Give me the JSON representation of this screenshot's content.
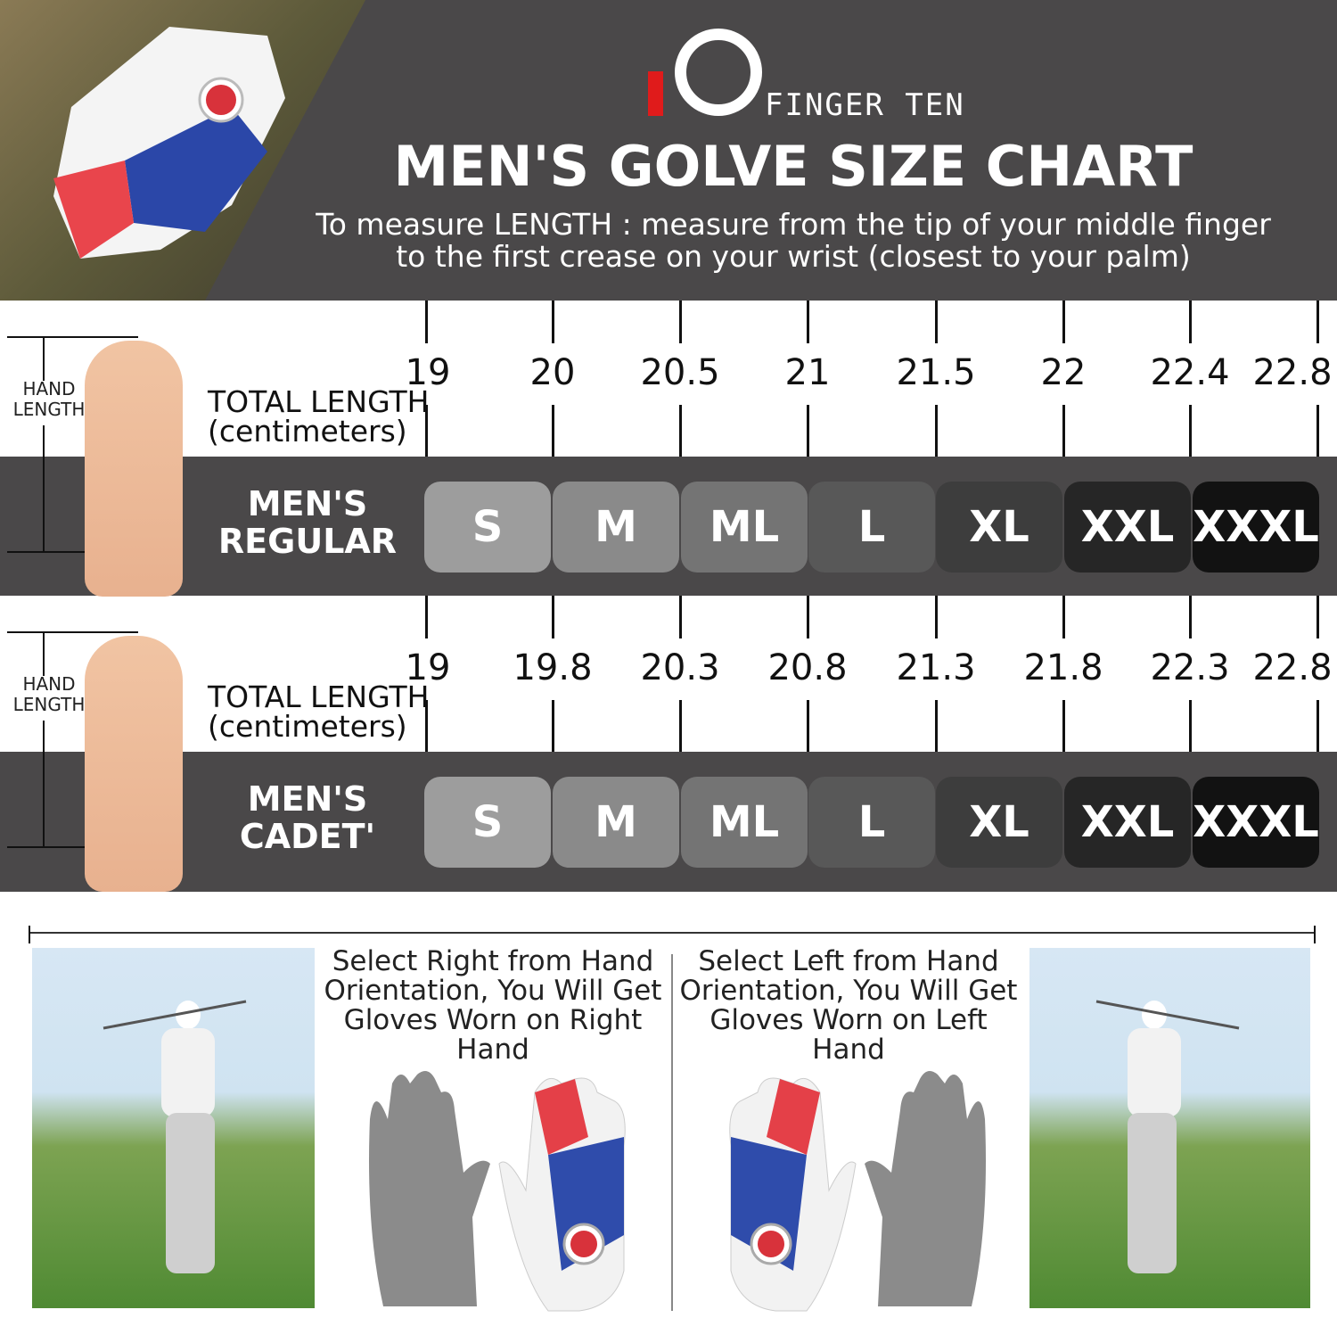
{
  "brand": {
    "name": "FINGER TEN",
    "accent": "#e01b1b"
  },
  "header": {
    "title": "MEN'S GOLVE SIZE CHART",
    "line1": "To measure LENGTH : measure from the tip of your middle finger",
    "line2": "to the first crease on your wrist (closest to your palm)"
  },
  "charts": [
    {
      "hand_label": "HAND LENGTH",
      "axis_label_1": "TOTAL LENGTH",
      "axis_label_2": "(centimeters)",
      "category": "MEN'S REGULAR",
      "lengths": [
        "19",
        "20",
        "20.5",
        "21",
        "21.5",
        "22",
        "22.4",
        "22.8"
      ],
      "sizes": [
        "S",
        "M",
        "ML",
        "L",
        "XL",
        "XXL",
        "XXXL"
      ]
    },
    {
      "hand_label": "HAND LENGTH",
      "axis_label_1": "TOTAL LENGTH",
      "axis_label_2": "(centimeters)",
      "category": "MEN'S CADET'",
      "lengths": [
        "19",
        "19.8",
        "20.3",
        "20.8",
        "21.3",
        "21.8",
        "22.3",
        "22.8"
      ],
      "sizes": [
        "S",
        "M",
        "ML",
        "L",
        "XL",
        "XXL",
        "XXXL"
      ]
    }
  ],
  "chip_colors": [
    "#9d9d9d",
    "#8a8a8a",
    "#747474",
    "#585858",
    "#3d3d3d",
    "#262626",
    "#121212"
  ],
  "orientation": {
    "right": "Select Right from Hand Orientation, You Will Get Gloves Worn on Right Hand",
    "left": "Select Left from Hand Orientation, You Will Get Gloves Worn on Left Hand"
  }
}
